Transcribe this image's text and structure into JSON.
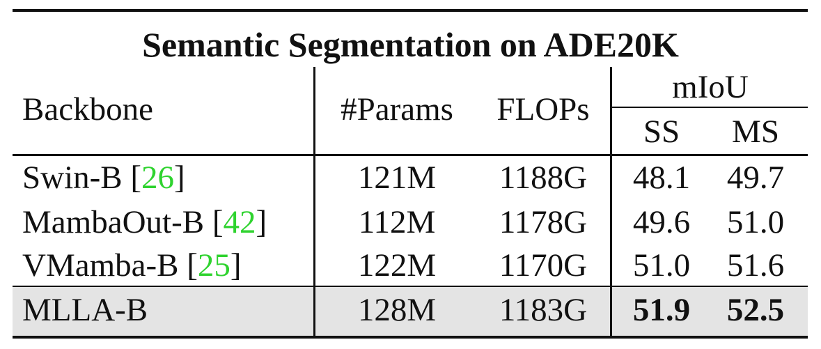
{
  "table": {
    "title": "Semantic Segmentation on ADE20K",
    "headers": {
      "backbone": "Backbone",
      "params": "#Params",
      "flops": "FLOPs",
      "miou": "mIoU",
      "ss": "SS",
      "ms": "MS"
    },
    "rows": [
      {
        "name": "Swin-B",
        "cite": "26",
        "params": "121M",
        "flops": "1188G",
        "ss": "48.1",
        "ms": "49.7",
        "highlight": false
      },
      {
        "name": "MambaOut-B",
        "cite": "42",
        "params": "112M",
        "flops": "1178G",
        "ss": "49.6",
        "ms": "51.0",
        "highlight": false
      },
      {
        "name": "VMamba-B",
        "cite": "25",
        "params": "122M",
        "flops": "1170G",
        "ss": "51.0",
        "ms": "51.6",
        "highlight": false
      },
      {
        "name": "MLLA-B",
        "cite": "",
        "params": "128M",
        "flops": "1183G",
        "ss": "51.9",
        "ms": "52.5",
        "highlight": true,
        "bold_miou": true
      }
    ]
  },
  "colors": {
    "citation": "#2fd32f",
    "highlight_row": "#e4e4e4",
    "rule": "#111111"
  }
}
